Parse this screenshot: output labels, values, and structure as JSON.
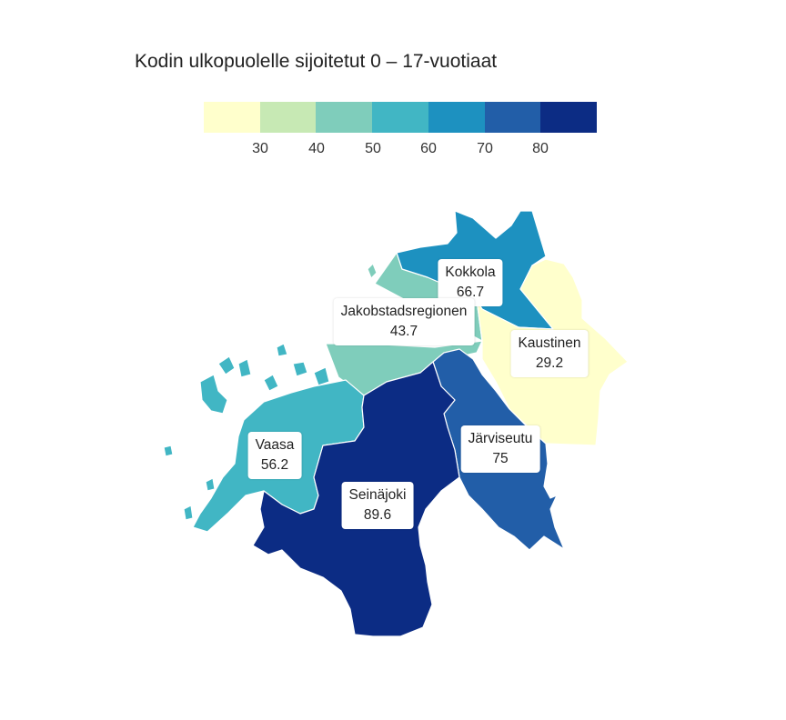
{
  "title": "Kodin ulkopuolelle sijoitetut 0 – 17-vuotiaat",
  "legend": {
    "colors": [
      "#ffffcc",
      "#c7e9b4",
      "#7fcdbb",
      "#41b6c4",
      "#1d91c0",
      "#225ea8",
      "#0c2c84"
    ],
    "ticks": [
      "30",
      "40",
      "50",
      "60",
      "70",
      "80"
    ]
  },
  "regions": [
    {
      "name": "Kokkola",
      "value": "66.7",
      "color": "#1d91c0"
    },
    {
      "name": "Jakobstadsregionen",
      "value": "43.7",
      "color": "#7fcdbb"
    },
    {
      "name": "Kaustinen",
      "value": "29.2",
      "color": "#ffffcc"
    },
    {
      "name": "Vaasa",
      "value": "56.2",
      "color": "#41b6c4"
    },
    {
      "name": "Järviseutu",
      "value": "75",
      "color": "#225ea8"
    },
    {
      "name": "Seinäjoki",
      "value": "89.6",
      "color": "#0c2c84"
    }
  ]
}
